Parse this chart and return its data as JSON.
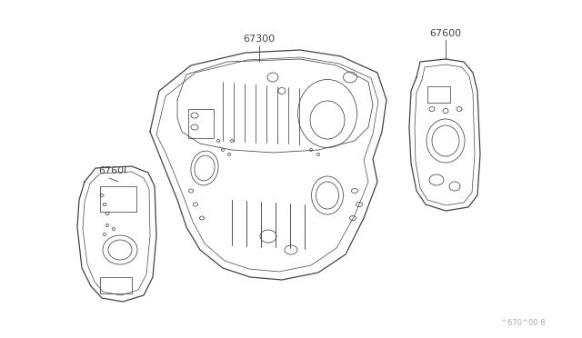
{
  "background_color": "#ffffff",
  "line_color": "#444444",
  "text_color": "#444444",
  "label_67300": "67300",
  "label_67600": "67600",
  "label_67601": "6760l",
  "watermark": "^670^00 8",
  "figsize": [
    6.4,
    3.72
  ],
  "dpi": 100,
  "lw_main": 0.9,
  "lw_thin": 0.55,
  "lw_inner": 0.5
}
